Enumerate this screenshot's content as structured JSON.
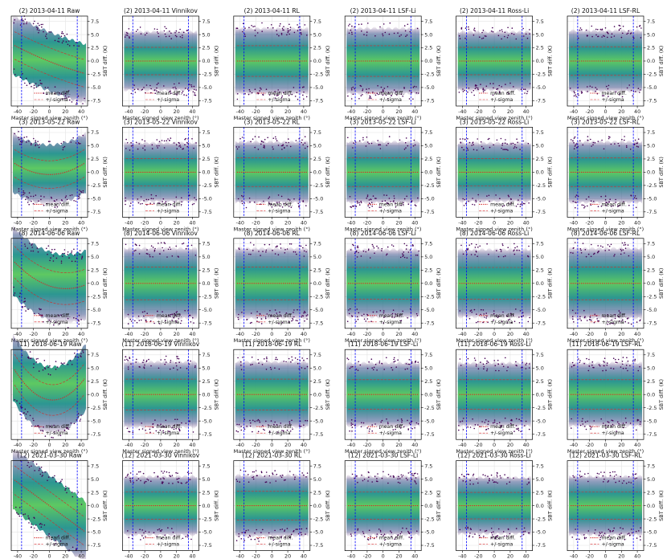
{
  "figure": {
    "rows": [
      {
        "label": "(2) 2013-04-11",
        "raw": {
          "slope": -0.06,
          "curv": 0.0002
        },
        "sigma": [
          2.6,
          2.6,
          2.9,
          2.9,
          2.6,
          2.7
        ]
      },
      {
        "label": "(3) 2013-05-22",
        "raw": {
          "slope": 0.0,
          "curv": 0.0011
        },
        "sigma": [
          2.6,
          2.6,
          2.7,
          2.7,
          2.6,
          2.7
        ]
      },
      {
        "label": "(8) 2014-06-06",
        "raw": {
          "slope": -0.05,
          "curv": 0.0012
        },
        "sigma": [
          3.0,
          3.1,
          3.1,
          3.0,
          3.0,
          3.1
        ]
      },
      {
        "label": "(11) 2018-06-19",
        "raw": {
          "slope": -0.02,
          "curv": 0.0025
        },
        "sigma": [
          2.9,
          2.9,
          2.9,
          2.8,
          2.8,
          2.8
        ]
      },
      {
        "label": "(12) 2021-03-30",
        "raw": {
          "slope": -0.11,
          "curv": 0.0
        },
        "sigma": [
          2.7,
          2.6,
          2.7,
          2.6,
          2.5,
          2.6
        ]
      }
    ],
    "methods": [
      "Raw",
      "Vinnikov",
      "RL",
      "LSF-Li",
      "Ross-Li",
      "LSF-RL"
    ]
  },
  "chart_data": {
    "type": "scatter",
    "layout": "5x6 grid of density scatter panels",
    "xlabel": "Master signed view zenith (°)",
    "ylabel": "SBT diff. (K)",
    "xlim": [
      -48,
      48
    ],
    "ylim": [
      -8.5,
      8.5
    ],
    "xticks": [
      -40,
      -20,
      0,
      20,
      40
    ],
    "yticks": [
      -7.5,
      -5.0,
      -2.5,
      0.0,
      2.5,
      5.0,
      7.5
    ],
    "yaxis_side": "right",
    "grid": true,
    "vertical_reference_lines": [
      -35,
      35
    ],
    "legend": {
      "placement": "lower-center",
      "entries": [
        "mean diff.",
        "+/-sigma"
      ]
    },
    "colors": {
      "mean": "#d62728",
      "sigma": "#d62728",
      "vline": "#0000ff",
      "colormap": "viridis"
    }
  }
}
